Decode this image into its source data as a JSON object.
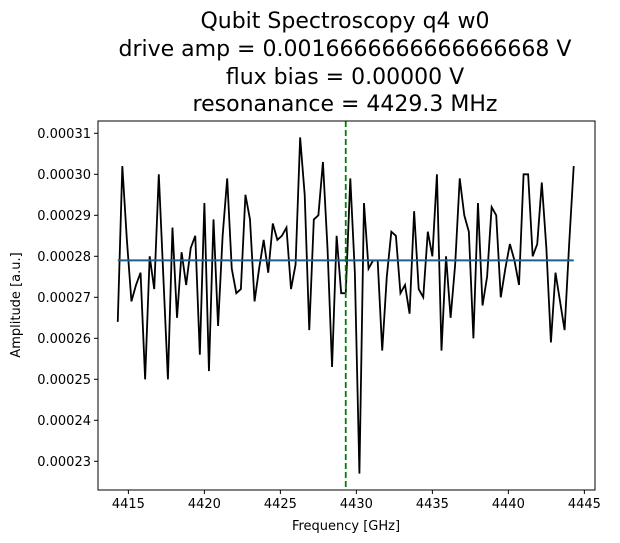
{
  "chart_data": {
    "type": "line",
    "title_lines": [
      "Qubit Spectroscopy q4 w0",
      "drive amp = 0.0016666666666666668 V",
      "flux bias = 0.00000 V",
      "resonanance = 4429.3 MHz"
    ],
    "xlabel": "Frequency [GHz]",
    "ylabel": "Amplitude [a.u.]",
    "xlim": [
      4413,
      4445.7
    ],
    "ylim": [
      0.000223,
      0.000313
    ],
    "x_ticks": [
      4415,
      4420,
      4425,
      4430,
      4435,
      4440,
      4445
    ],
    "x_tick_labels": [
      "4415",
      "4420",
      "4425",
      "4430",
      "4435",
      "4440",
      "4445"
    ],
    "y_ticks": [
      0.00023,
      0.00024,
      0.00025,
      0.00026,
      0.00027,
      0.00028,
      0.00029,
      0.0003,
      0.00031
    ],
    "y_tick_labels": [
      "0.00023",
      "0.00024",
      "0.00025",
      "0.00026",
      "0.00027",
      "0.00028",
      "0.00029",
      "0.00030",
      "0.00031"
    ],
    "grid": false,
    "colors": {
      "data": "#000000",
      "fit": "#1f5f8b",
      "resonance": "#008000"
    },
    "series": [
      {
        "role": "data",
        "x": [
          4414.3,
          4414.6,
          4414.9,
          4415.2,
          4415.5,
          4415.8,
          4416.1,
          4416.4,
          4416.7,
          4417.0,
          4417.3,
          4417.6,
          4417.9,
          4418.2,
          4418.5,
          4418.8,
          4419.1,
          4419.4,
          4419.7,
          4420.0,
          4420.3,
          4420.6,
          4420.9,
          4421.2,
          4421.5,
          4421.8,
          4422.1,
          4422.4,
          4422.7,
          4423.0,
          4423.3,
          4423.6,
          4423.9,
          4424.2,
          4424.5,
          4424.8,
          4425.1,
          4425.4,
          4425.7,
          4426.0,
          4426.3,
          4426.6,
          4426.9,
          4427.2,
          4427.5,
          4427.8,
          4428.1,
          4428.4,
          4428.7,
          4429.0,
          4429.3,
          4429.6,
          4429.9,
          4430.2,
          4430.5,
          4430.8,
          4431.1,
          4431.4,
          4431.7,
          4432.0,
          4432.3,
          4432.6,
          4432.9,
          4433.2,
          4433.5,
          4433.8,
          4434.1,
          4434.4,
          4434.7,
          4435.0,
          4435.3,
          4435.6,
          4435.9,
          4436.2,
          4436.5,
          4436.8,
          4437.1,
          4437.4,
          4437.7,
          4438.0,
          4438.3,
          4438.6,
          4438.9,
          4439.2,
          4439.5,
          4439.8,
          4440.1,
          4440.4,
          4440.7,
          4441.0,
          4441.3,
          4441.6,
          4441.9,
          4442.2,
          4442.5,
          4442.8,
          4443.1,
          4443.4,
          4443.7,
          4444.0,
          4444.3
        ],
        "y": [
          0.000264,
          0.000302,
          0.000284,
          0.000269,
          0.000273,
          0.000276,
          0.00025,
          0.00028,
          0.000272,
          0.0003,
          0.000275,
          0.00025,
          0.000287,
          0.000265,
          0.000281,
          0.000273,
          0.000282,
          0.000285,
          0.000256,
          0.000293,
          0.000252,
          0.000289,
          0.000263,
          0.000285,
          0.000299,
          0.000277,
          0.000271,
          0.000272,
          0.000295,
          0.000289,
          0.000269,
          0.000277,
          0.000284,
          0.000276,
          0.000288,
          0.000284,
          0.000285,
          0.000287,
          0.000272,
          0.000278,
          0.000309,
          0.000295,
          0.000262,
          0.000289,
          0.00029,
          0.000303,
          0.000282,
          0.000253,
          0.000285,
          0.000271,
          0.000271,
          0.000299,
          0.000276,
          0.000227,
          0.000293,
          0.000277,
          0.000279,
          0.000279,
          0.000257,
          0.000275,
          0.000286,
          0.000285,
          0.000271,
          0.000273,
          0.000266,
          0.000291,
          0.000272,
          0.00027,
          0.000286,
          0.00028,
          0.0003,
          0.000257,
          0.00028,
          0.000265,
          0.000278,
          0.000299,
          0.00029,
          0.000286,
          0.00026,
          0.000293,
          0.000268,
          0.000275,
          0.000292,
          0.00029,
          0.00027,
          0.000277,
          0.000283,
          0.000279,
          0.000273,
          0.0003,
          0.0003,
          0.00028,
          0.000283,
          0.000298,
          0.000282,
          0.000259,
          0.000276,
          0.000269,
          0.000262,
          0.000283,
          0.000302
        ]
      },
      {
        "role": "fit",
        "x": [
          4414.3,
          4444.3
        ],
        "y": [
          0.000279,
          0.000279
        ]
      }
    ],
    "vline_x": 4429.3
  }
}
